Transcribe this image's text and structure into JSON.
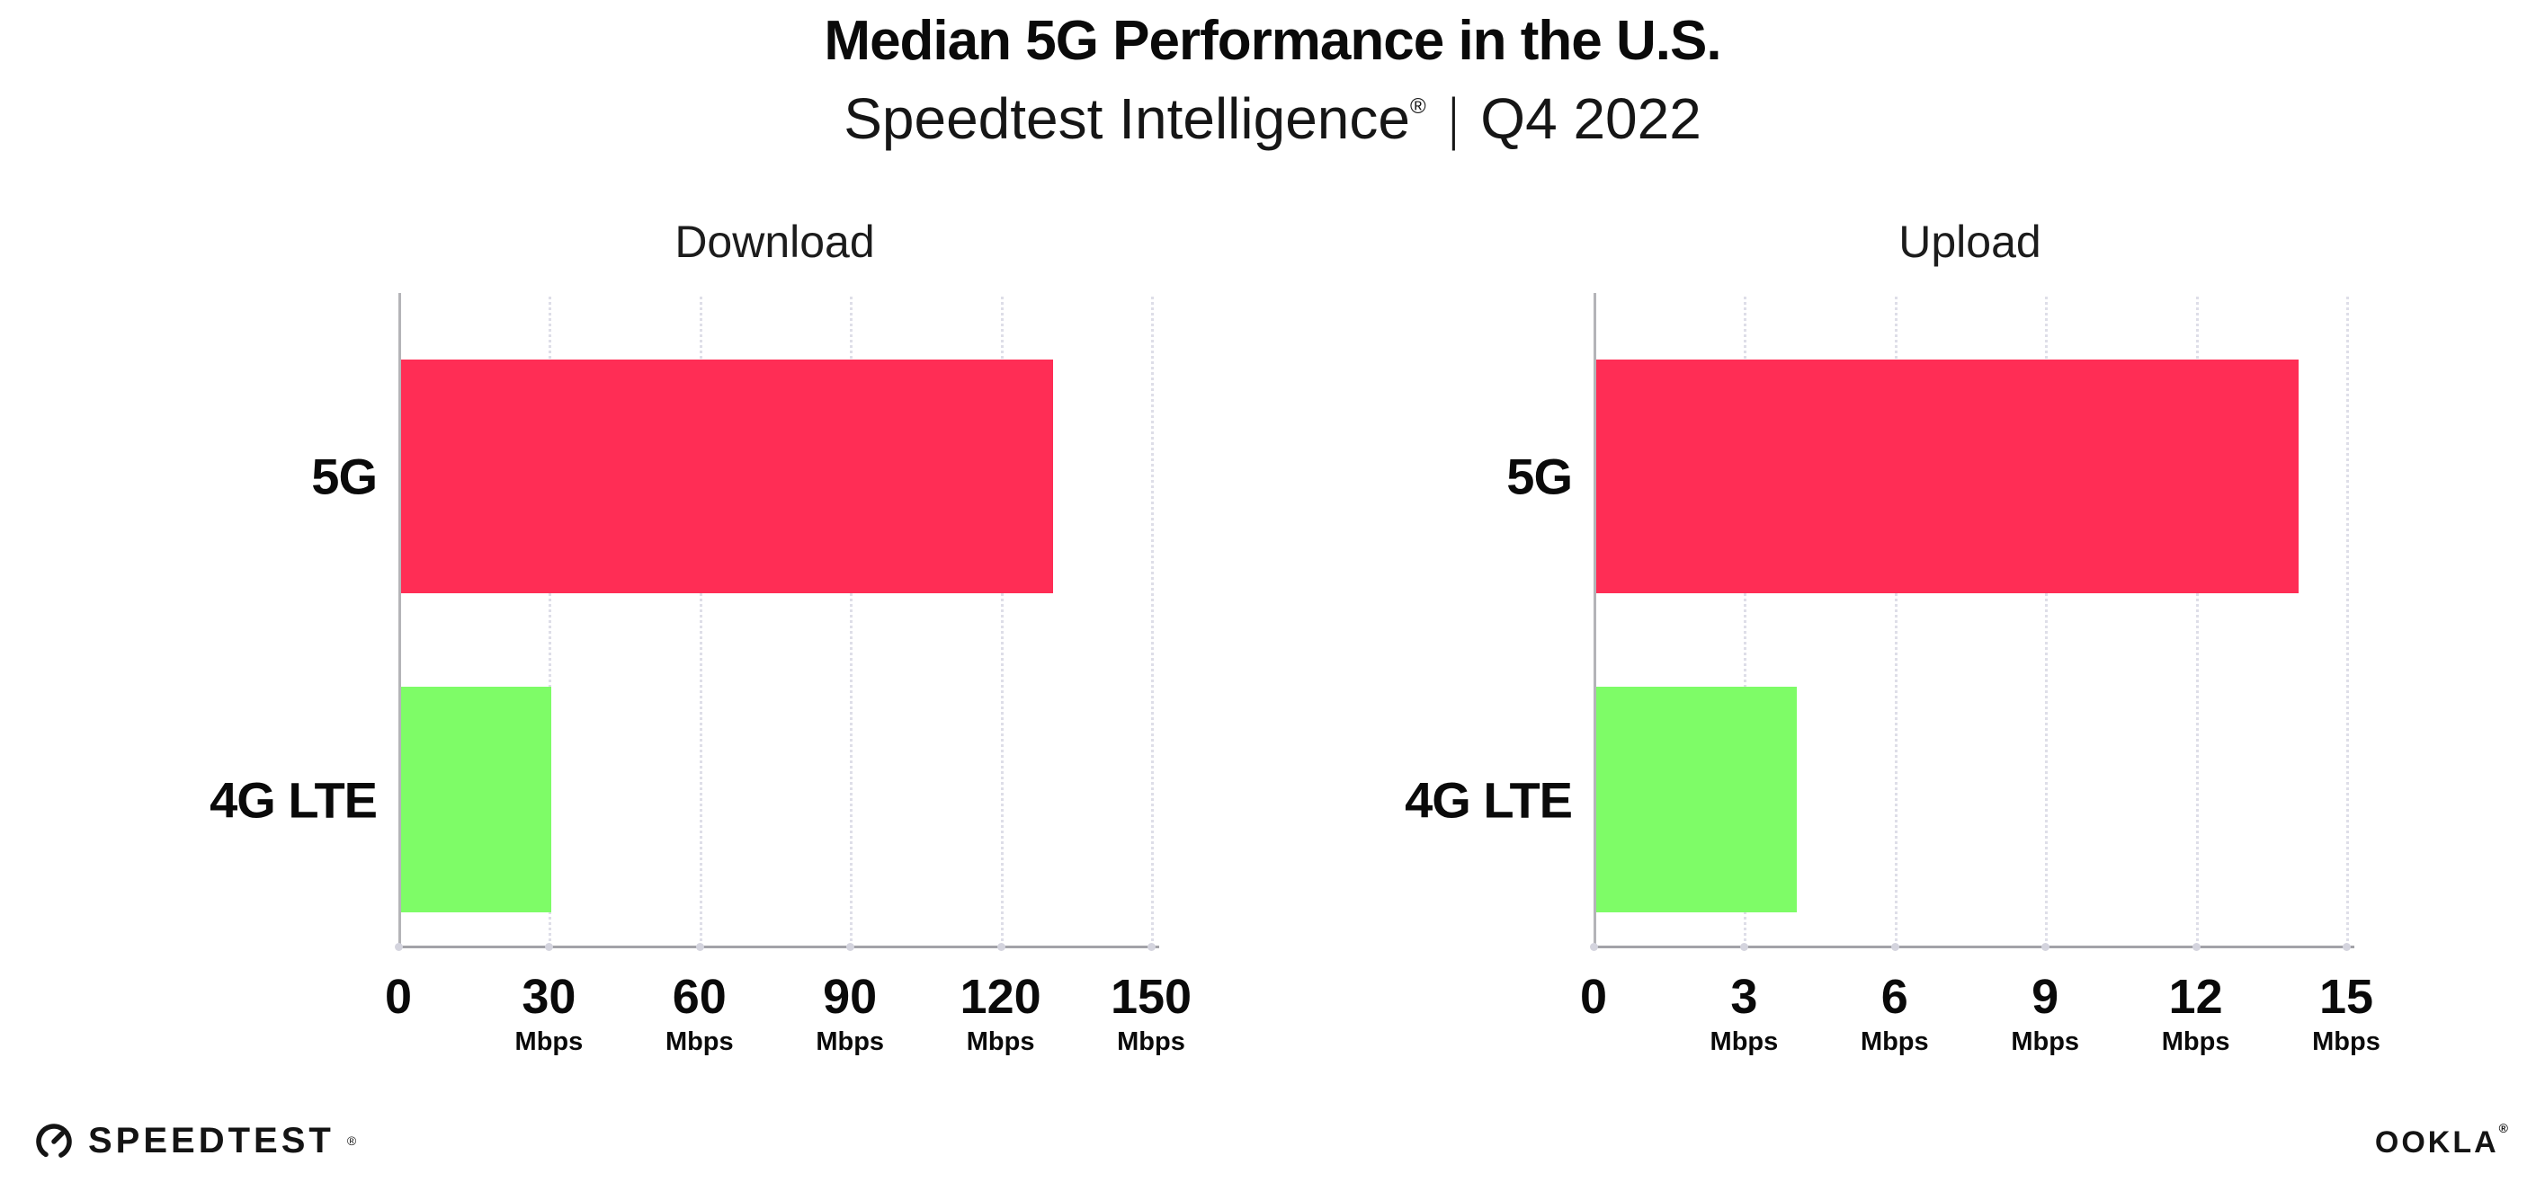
{
  "header": {
    "title": "Median 5G Performance in the U.S.",
    "subtitle": {
      "brand": "Speedtest Intelligence",
      "registered_mark": "®",
      "separator": "|",
      "period": "Q4 2022"
    }
  },
  "chart_data": [
    {
      "type": "bar",
      "orientation": "horizontal",
      "title": "Download",
      "categories": [
        "5G",
        "4G LTE"
      ],
      "values": [
        130,
        30
      ],
      "unit": "Mbps",
      "xlim": [
        0,
        150
      ],
      "xticks": [
        0,
        30,
        60,
        90,
        120,
        150
      ],
      "grid": true,
      "legend_position": "none",
      "bar_colors": [
        "#FF2D55",
        "#7EFC67"
      ]
    },
    {
      "type": "bar",
      "orientation": "horizontal",
      "title": "Upload",
      "categories": [
        "5G",
        "4G LTE"
      ],
      "values": [
        14,
        4
      ],
      "unit": "Mbps",
      "xlim": [
        0,
        15
      ],
      "xticks": [
        0,
        3,
        6,
        9,
        12,
        15
      ],
      "grid": true,
      "legend_position": "none",
      "bar_colors": [
        "#FF2D55",
        "#7EFC67"
      ]
    }
  ],
  "colors": {
    "bar_5g": "#FF2D55",
    "bar_4g_lte": "#7EFC67",
    "grid": "#DEDEE8",
    "axis": "#A3A3A8",
    "text": "#0D0D0D"
  },
  "footer": {
    "speedtest_label": "SPEEDTEST",
    "speedtest_mark": "®",
    "ookla_label": "OOKLA",
    "ookla_mark": "®"
  }
}
